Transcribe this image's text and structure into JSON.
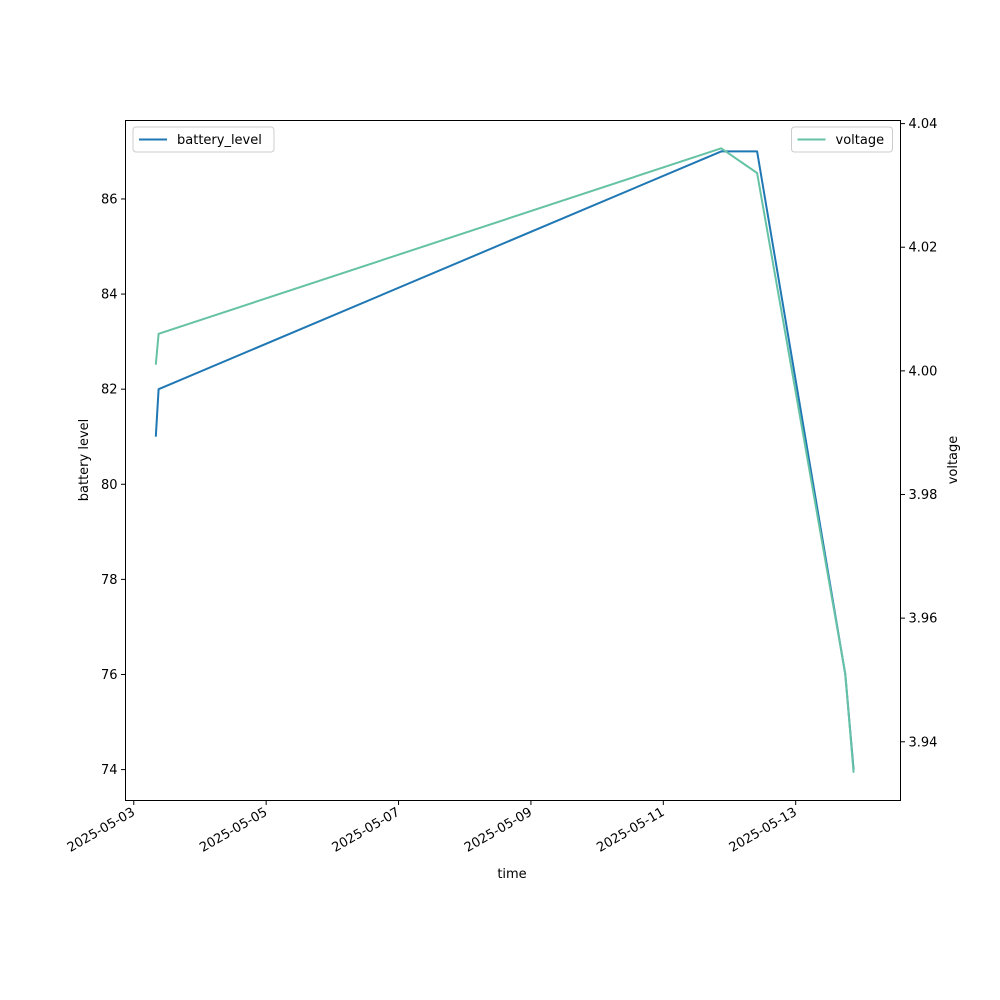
{
  "chart_data": {
    "type": "line",
    "title": "",
    "xlabel": "time",
    "ylabel": "battery level",
    "y2label": "voltage",
    "x_ticks": [
      "2025-05-03",
      "2025-05-05",
      "2025-05-07",
      "2025-05-09",
      "2025-05-11",
      "2025-05-13"
    ],
    "y_ticks": [
      74,
      76,
      78,
      80,
      82,
      84,
      86
    ],
    "y2_ticks": [
      "3.94",
      "3.96",
      "3.98",
      "4.00",
      "4.02",
      "4.04"
    ],
    "xlim": [
      "2025-05-02T21:00",
      "2025-05-14T14:00"
    ],
    "ylim": [
      73.35,
      87.65
    ],
    "y2lim": [
      3.9305,
      4.0405
    ],
    "grid": false,
    "series": [
      {
        "name": "battery_level",
        "axis": "left",
        "color": "#1f77b4",
        "legend_position": "upper-left",
        "x": [
          "2025-05-03T08:00",
          "2025-05-03T09:00",
          "2025-05-11T21:00",
          "2025-05-12T10:00",
          "2025-05-13T18:00",
          "2025-05-13T21:00"
        ],
        "y": [
          81,
          82,
          87,
          87,
          76,
          74
        ]
      },
      {
        "name": "voltage",
        "axis": "right",
        "color": "#66c2a5",
        "legend_position": "upper-right",
        "x": [
          "2025-05-03T08:00",
          "2025-05-03T09:00",
          "2025-05-11T21:00",
          "2025-05-12T10:00",
          "2025-05-13T18:00",
          "2025-05-13T21:00"
        ],
        "y": [
          4.001,
          4.006,
          4.036,
          4.032,
          3.951,
          3.935
        ]
      }
    ]
  }
}
